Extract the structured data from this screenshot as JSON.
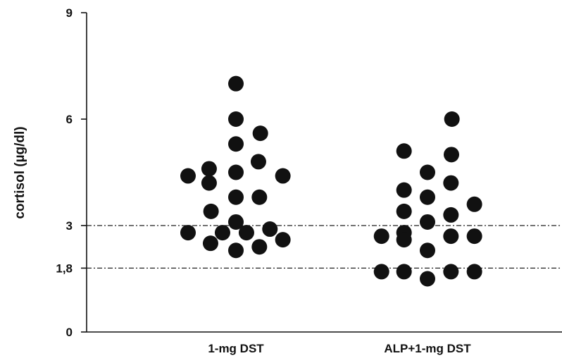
{
  "chart_data": {
    "type": "scatter",
    "title": "",
    "xlabel": "",
    "ylabel": "cortisol (µg/dl)",
    "ylim": [
      0,
      9
    ],
    "y_ticks": [
      "0",
      "1,8",
      "3",
      "6",
      "9"
    ],
    "y_tick_values": [
      0,
      1.8,
      3,
      6,
      9
    ],
    "categories": [
      "1-mg DST",
      "ALP+1-mg DST"
    ],
    "reference_lines": [
      3,
      1.8
    ],
    "grid": false,
    "series": [
      {
        "category": "1-mg DST",
        "points": [
          {
            "offset": 0.0,
            "value": 7.0
          },
          {
            "offset": 0.0,
            "value": 6.0
          },
          {
            "offset": 0.51,
            "value": 5.6
          },
          {
            "offset": 0.0,
            "value": 5.3
          },
          {
            "offset": 0.47,
            "value": 4.8
          },
          {
            "offset": -0.56,
            "value": 4.6
          },
          {
            "offset": 0.0,
            "value": 4.5
          },
          {
            "offset": -1.0,
            "value": 4.4
          },
          {
            "offset": 0.98,
            "value": 4.4
          },
          {
            "offset": -0.56,
            "value": 4.2
          },
          {
            "offset": 0.0,
            "value": 3.8
          },
          {
            "offset": 0.49,
            "value": 3.8
          },
          {
            "offset": -0.52,
            "value": 3.4
          },
          {
            "offset": 0.0,
            "value": 3.1
          },
          {
            "offset": -1.0,
            "value": 2.8
          },
          {
            "offset": -0.28,
            "value": 2.8
          },
          {
            "offset": 0.22,
            "value": 2.8
          },
          {
            "offset": 0.71,
            "value": 2.9
          },
          {
            "offset": -0.53,
            "value": 2.5
          },
          {
            "offset": 0.98,
            "value": 2.6
          },
          {
            "offset": 0.0,
            "value": 2.3
          },
          {
            "offset": 0.49,
            "value": 2.4
          }
        ]
      },
      {
        "category": "ALP+1-mg DST",
        "points": [
          {
            "offset": 0.51,
            "value": 6.0
          },
          {
            "offset": -0.49,
            "value": 5.1
          },
          {
            "offset": 0.5,
            "value": 5.0
          },
          {
            "offset": 0.0,
            "value": 4.5
          },
          {
            "offset": 0.49,
            "value": 4.2
          },
          {
            "offset": -0.49,
            "value": 4.0
          },
          {
            "offset": 0.0,
            "value": 3.8
          },
          {
            "offset": 0.98,
            "value": 3.6
          },
          {
            "offset": -0.49,
            "value": 3.4
          },
          {
            "offset": 0.49,
            "value": 3.3
          },
          {
            "offset": 0.0,
            "value": 3.1
          },
          {
            "offset": -0.49,
            "value": 2.8
          },
          {
            "offset": -0.96,
            "value": 2.7
          },
          {
            "offset": 0.49,
            "value": 2.7
          },
          {
            "offset": 0.98,
            "value": 2.7
          },
          {
            "offset": -0.49,
            "value": 2.6
          },
          {
            "offset": 0.0,
            "value": 2.3
          },
          {
            "offset": -0.96,
            "value": 1.7
          },
          {
            "offset": -0.49,
            "value": 1.7
          },
          {
            "offset": 0.49,
            "value": 1.7
          },
          {
            "offset": 0.98,
            "value": 1.7
          },
          {
            "offset": 0.0,
            "value": 1.5
          }
        ]
      }
    ]
  },
  "colors": {
    "dot": "#111111",
    "axis": "#111111"
  }
}
